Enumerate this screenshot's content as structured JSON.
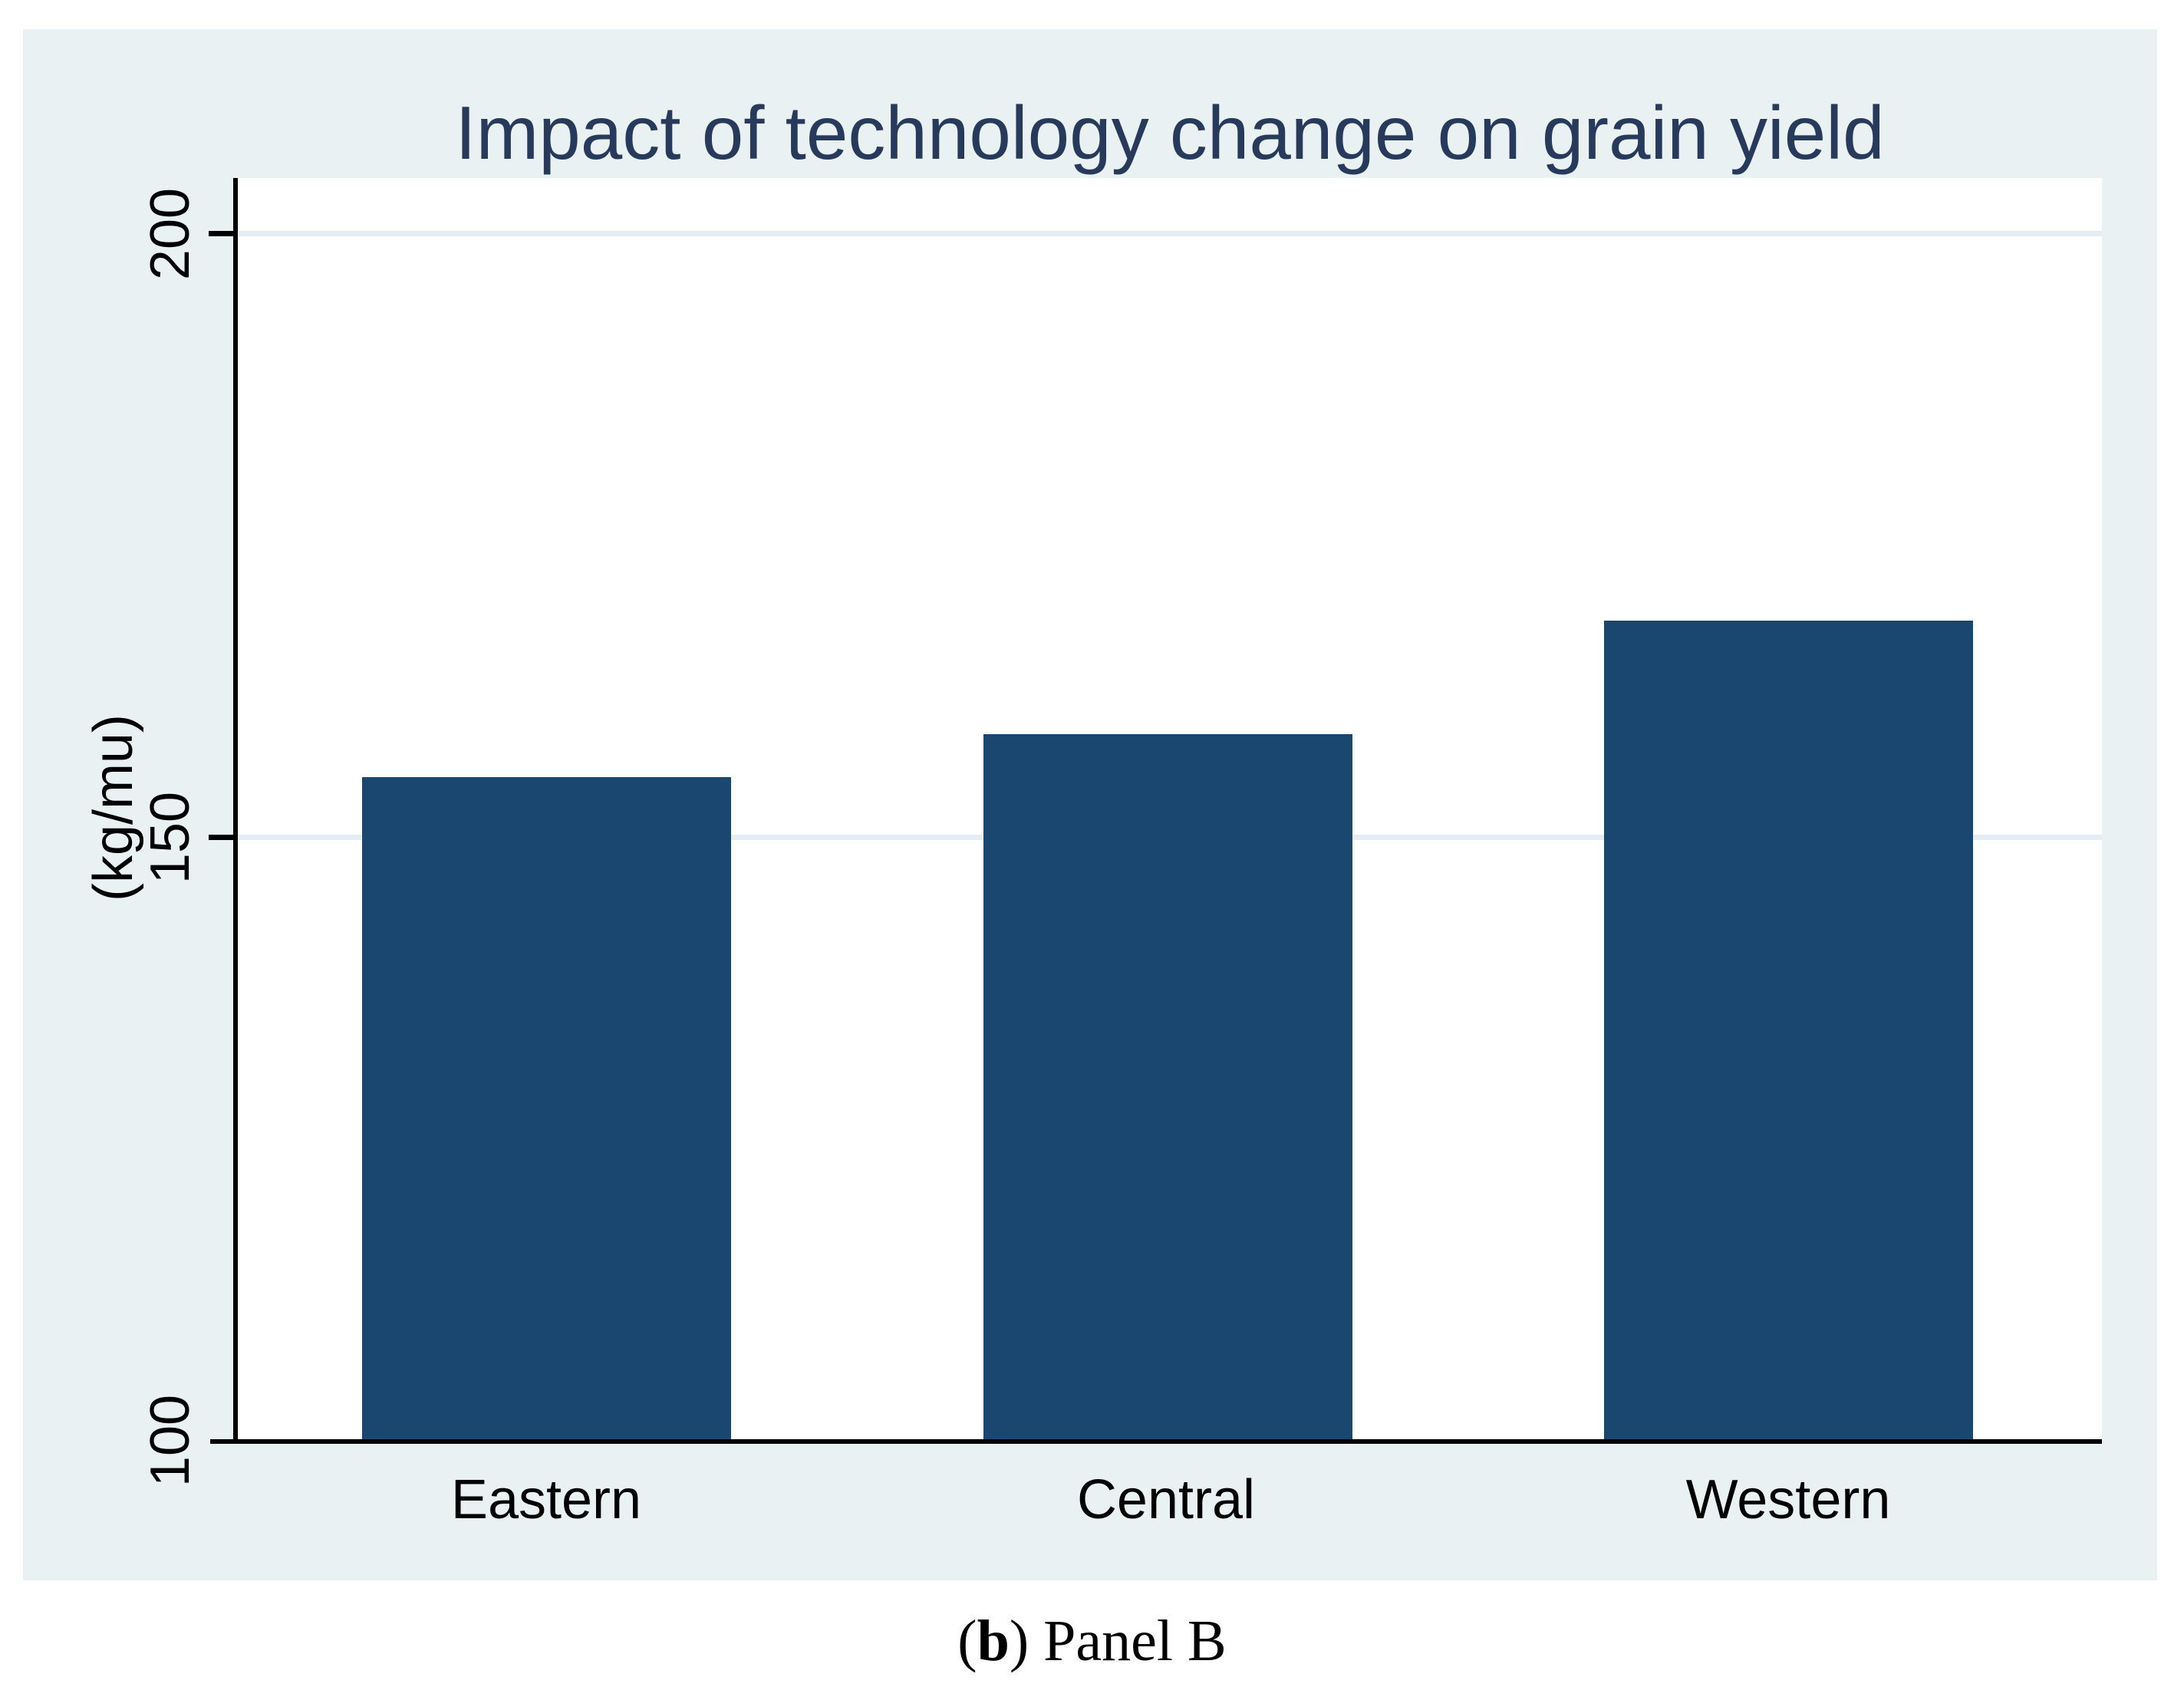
{
  "chart_data": {
    "type": "bar",
    "title": "Impact of technology change on grain yield",
    "ylabel": "(kg/mu)",
    "xlabel": "",
    "categories": [
      "Eastern",
      "Central",
      "Western"
    ],
    "values": [
      155,
      158.6,
      168
    ],
    "ylim": [
      100,
      204.6
    ],
    "yticks": [
      100,
      150,
      200
    ],
    "gridlines_at": [
      150,
      200
    ],
    "grid": true,
    "legend": "none",
    "bar_color": "#1a476f"
  },
  "colors": {
    "figure_bg": "#eaf1f3",
    "plot_bg": "#ffffff",
    "gridline": "#e4eef2",
    "axis": "#000000",
    "title_text": "#283a5c",
    "label_text": "#000000",
    "bar": "#1a476f"
  },
  "caption": {
    "open": "(",
    "bold": "b",
    "rest": ") Panel B"
  }
}
